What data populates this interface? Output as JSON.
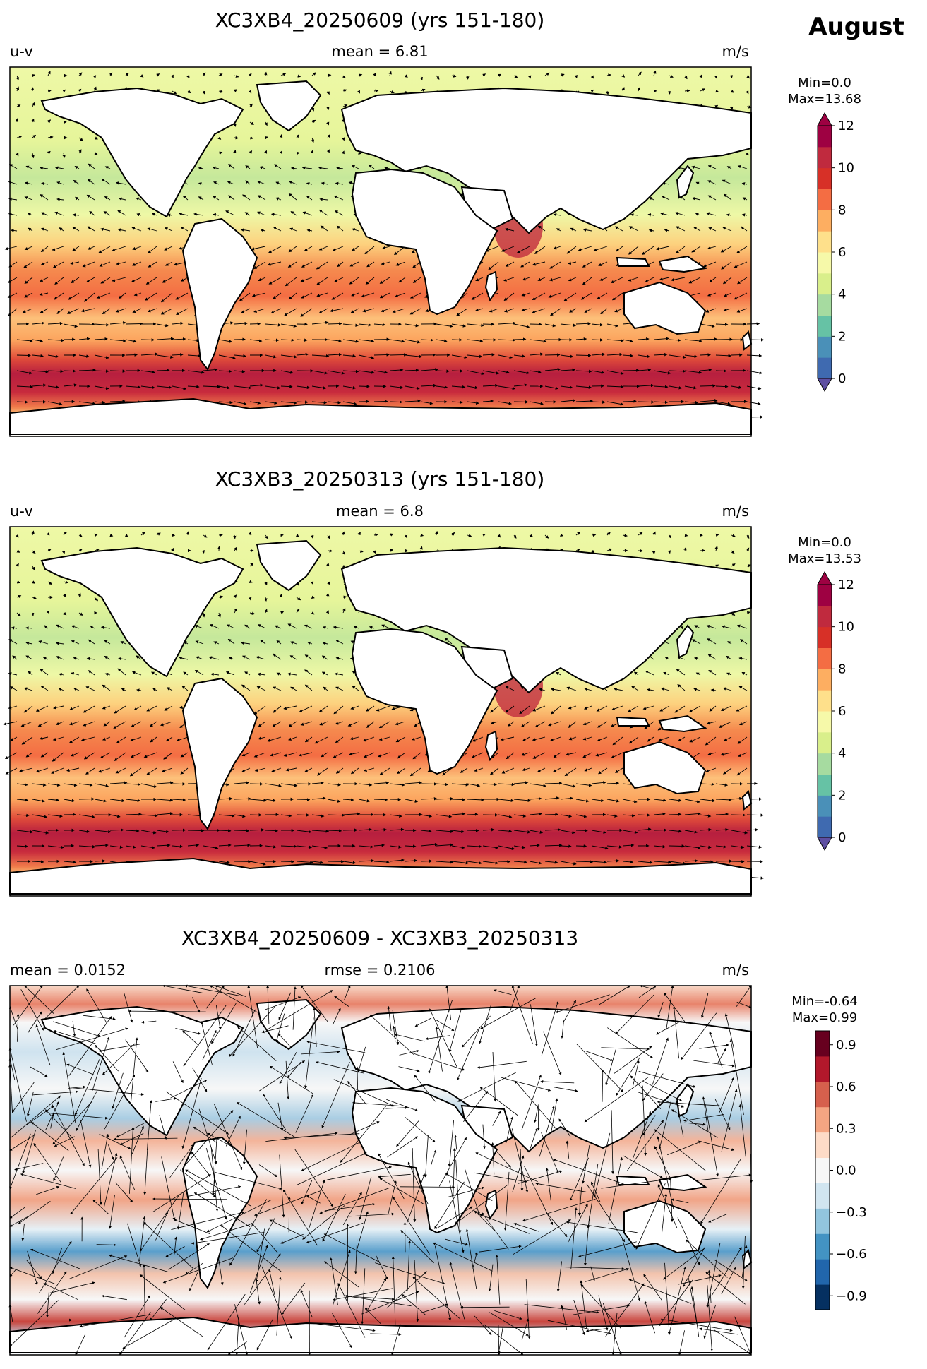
{
  "figure": {
    "month": "August"
  },
  "chart_data": [
    {
      "type": "heatmap",
      "title": "XC3XB4_20250609 (yrs 151-180)",
      "left_label": "u-v",
      "center_label": "mean = 6.81",
      "right_label": "m/s",
      "range_text_min": "Min=0.0",
      "range_text_max": "Max=13.68",
      "colorbar": {
        "ticks": [
          "0",
          "2",
          "4",
          "6",
          "8",
          "10",
          "12"
        ],
        "tick_values": [
          0,
          2,
          4,
          6,
          8,
          10,
          12
        ],
        "range": [
          0,
          12
        ],
        "extend": "both",
        "colormap": "Spectral_r",
        "colors": [
          "#3f6ab0",
          "#4a90b8",
          "#66c2a5",
          "#a6dba0",
          "#d9ef8b",
          "#f6f9a9",
          "#fee08b",
          "#fdae61",
          "#f46d43",
          "#d73027",
          "#c02a3e",
          "#9e0142"
        ]
      },
      "field": "wind speed magnitude with u-v vectors",
      "mean": 6.81,
      "min": 0.0,
      "max": 13.68
    },
    {
      "type": "heatmap",
      "title": "XC3XB3_20250313 (yrs 151-180)",
      "left_label": "u-v",
      "center_label": "mean = 6.8",
      "right_label": "m/s",
      "range_text_min": "Min=0.0",
      "range_text_max": "Max=13.53",
      "colorbar": {
        "ticks": [
          "0",
          "2",
          "4",
          "6",
          "8",
          "10",
          "12"
        ],
        "tick_values": [
          0,
          2,
          4,
          6,
          8,
          10,
          12
        ],
        "range": [
          0,
          12
        ],
        "extend": "both",
        "colormap": "Spectral_r",
        "colors": [
          "#3f6ab0",
          "#4a90b8",
          "#66c2a5",
          "#a6dba0",
          "#d9ef8b",
          "#f6f9a9",
          "#fee08b",
          "#fdae61",
          "#f46d43",
          "#d73027",
          "#c02a3e",
          "#9e0142"
        ]
      },
      "field": "wind speed magnitude with u-v vectors",
      "mean": 6.8,
      "min": 0.0,
      "max": 13.53
    },
    {
      "type": "heatmap",
      "title": "XC3XB4_20250609 - XC3XB3_20250313",
      "left_label": "mean = 0.0152",
      "center_label": "rmse = 0.2106",
      "right_label": "m/s",
      "range_text_min": "Min=-0.64",
      "range_text_max": "Max=0.99",
      "colorbar": {
        "ticks": [
          "0.9",
          "0.6",
          "0.3",
          "0.0",
          "−0.3",
          "−0.6",
          "−0.9"
        ],
        "tick_values": [
          0.9,
          0.6,
          0.3,
          0.0,
          -0.3,
          -0.6,
          -0.9
        ],
        "range": [
          -1.0,
          1.0
        ],
        "extend": "neither",
        "colormap": "RdBu_r",
        "colors": [
          "#053061",
          "#2166ac",
          "#4393c3",
          "#92c5de",
          "#d1e5f0",
          "#f7f7f7",
          "#fddbc7",
          "#f4a582",
          "#d6604d",
          "#b2182b",
          "#67001f"
        ]
      },
      "field": "difference in wind speed with u-v difference vectors",
      "mean": 0.0152,
      "rmse": 0.2106,
      "min": -0.64,
      "max": 0.99
    }
  ]
}
